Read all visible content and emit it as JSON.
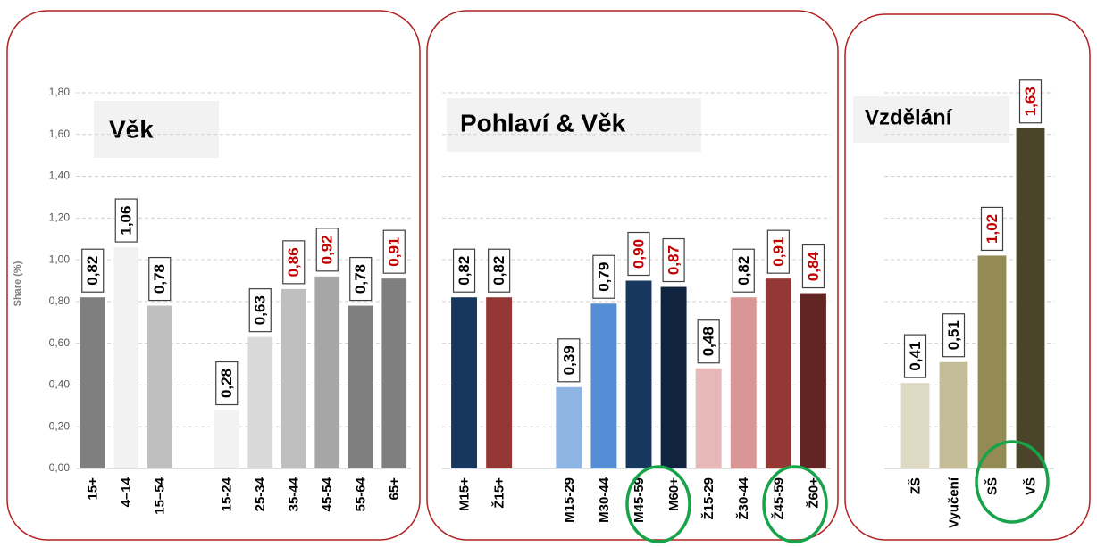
{
  "chart_data": [
    {
      "type": "bar",
      "title": "Věk",
      "y_label": "Share (%)",
      "categories": [
        "15+",
        "4–14",
        "15–54",
        null,
        "15-24",
        "25-34",
        "35-44",
        "45-54",
        "55-64",
        "65+"
      ],
      "values": [
        0.82,
        1.06,
        0.78,
        null,
        0.28,
        0.63,
        0.86,
        0.92,
        0.78,
        0.91
      ],
      "value_labels": [
        "0,82",
        "1,06",
        "0,78",
        null,
        "0,28",
        "0,63",
        "0,86",
        "0,92",
        "0,78",
        "0,91"
      ],
      "colors": [
        "#7f7f7f",
        "#f2f2f2",
        "#bfbfbf",
        null,
        "#f2f2f2",
        "#d9d9d9",
        "#bfbfbf",
        "#a6a6a6",
        "#7f7f7f",
        "#7f7f7f"
      ],
      "label_colors": [
        "#000000",
        "#000000",
        "#000000",
        null,
        "#000000",
        "#000000",
        "#c00000",
        "#c00000",
        "#000000",
        "#c00000"
      ],
      "ylim": [
        0,
        1.8
      ],
      "yticks": [
        {
          "value": 0,
          "label": "0,00"
        },
        {
          "value": 0.2,
          "label": "0,20"
        },
        {
          "value": 0.4,
          "label": "0,40"
        },
        {
          "value": 0.6,
          "label": "0,60"
        },
        {
          "value": 0.8,
          "label": "0,80"
        },
        {
          "value": 1,
          "label": "1,00"
        },
        {
          "value": 1.2,
          "label": "1,20"
        },
        {
          "value": 1.4,
          "label": "1,40"
        },
        {
          "value": 1.6,
          "label": "1,60"
        },
        {
          "value": 1.8,
          "label": "1,80"
        }
      ],
      "grid": true
    },
    {
      "type": "bar",
      "title": "Pohlaví & Věk",
      "categories": [
        "M15+",
        "Ž15+",
        null,
        "M15-29",
        "M30-44",
        "M45-59",
        "M60+",
        "Ž15-29",
        "Ž30-44",
        "Ž45-59",
        "Ž60+"
      ],
      "values": [
        0.82,
        0.82,
        null,
        0.39,
        0.79,
        0.9,
        0.87,
        0.48,
        0.82,
        0.91,
        0.84
      ],
      "value_labels": [
        "0,82",
        "0,82",
        null,
        "0,39",
        "0,79",
        "0,90",
        "0,87",
        "0,48",
        "0,82",
        "0,91",
        "0,84"
      ],
      "colors": [
        "#17375e",
        "#953735",
        null,
        "#8eb4e3",
        "#558ed5",
        "#17375e",
        "#10243f",
        "#e6b9b8",
        "#d99694",
        "#953735",
        "#632523"
      ],
      "label_colors": [
        "#000000",
        "#000000",
        null,
        "#000000",
        "#000000",
        "#c00000",
        "#c00000",
        "#000000",
        "#000000",
        "#c00000",
        "#c00000"
      ],
      "ylim": [
        0,
        1.8
      ],
      "yticks": [
        0.2,
        0.4,
        0.6,
        0.8,
        1,
        1.2,
        1.4,
        1.6,
        1.8
      ],
      "grid": true
    },
    {
      "type": "bar",
      "title": "Vzdělání",
      "categories": [
        "ZŠ",
        "Vyučení",
        "SŠ",
        "VŠ"
      ],
      "values": [
        0.41,
        0.51,
        1.02,
        1.63
      ],
      "value_labels": [
        "0,41",
        "0,51",
        "1,02",
        "1,63"
      ],
      "colors": [
        "#ddd9c3",
        "#c4bd97",
        "#948a54",
        "#4a452a"
      ],
      "label_colors": [
        "#000000",
        "#000000",
        "#c00000",
        "#c00000"
      ],
      "ylim": [
        0,
        1.8
      ],
      "yticks": [
        0.2,
        0.4,
        0.6,
        0.8,
        1,
        1.2,
        1.4,
        1.6,
        1.8
      ],
      "grid": true
    }
  ]
}
